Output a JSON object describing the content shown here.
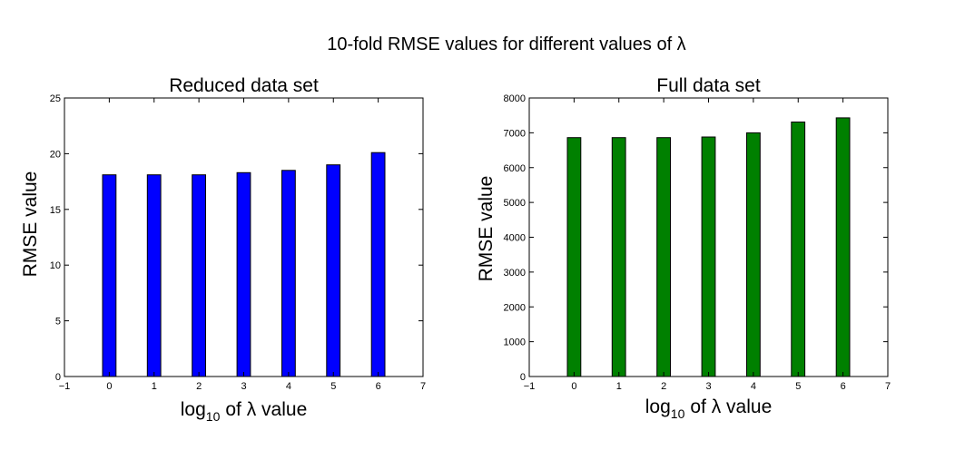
{
  "title": "10-fold RMSE values for different values of λ",
  "chart_data": [
    {
      "type": "bar",
      "title": "Reduced data set",
      "xlabel_main": "log",
      "xlabel_sub": "10",
      "xlabel_rest": "of λ value",
      "ylabel": "RMSE value",
      "xlim": [
        -1,
        7
      ],
      "ylim": [
        0,
        25
      ],
      "xticks": [
        "−1",
        "0",
        "1",
        "2",
        "3",
        "4",
        "5",
        "6",
        "7"
      ],
      "yticks": [
        "0",
        "5",
        "10",
        "15",
        "20",
        "25"
      ],
      "x": [
        0,
        1,
        2,
        3,
        4,
        5,
        6
      ],
      "values": [
        18.1,
        18.1,
        18.1,
        18.3,
        18.5,
        19.0,
        20.1
      ],
      "color": "#0000ff"
    },
    {
      "type": "bar",
      "title": "Full data set",
      "xlabel_main": "log",
      "xlabel_sub": "10",
      "xlabel_rest": "of λ value",
      "ylabel": "RMSE value",
      "xlim": [
        -1,
        7
      ],
      "ylim": [
        0,
        8000
      ],
      "xticks": [
        "−1",
        "0",
        "1",
        "2",
        "3",
        "4",
        "5",
        "6",
        "7"
      ],
      "yticks": [
        "0",
        "1000",
        "2000",
        "3000",
        "4000",
        "5000",
        "6000",
        "7000",
        "8000"
      ],
      "x": [
        0,
        1,
        2,
        3,
        4,
        5,
        6
      ],
      "values": [
        6860,
        6860,
        6860,
        6880,
        7000,
        7310,
        7430
      ],
      "color": "#008000"
    }
  ]
}
